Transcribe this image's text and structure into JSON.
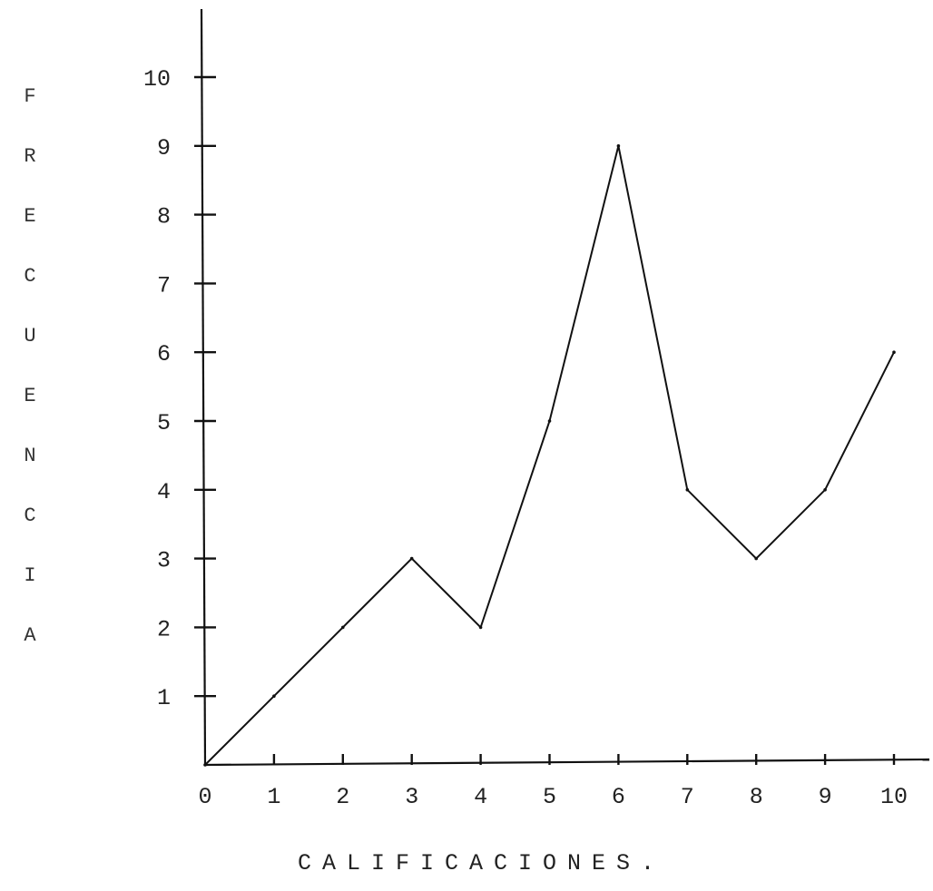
{
  "chart_data": {
    "type": "line",
    "xlabel": "CALIFICACIONES.",
    "ylabel": "FRECUENCIA",
    "x_ticks": [
      "0",
      "1",
      "2",
      "3",
      "4",
      "5",
      "6",
      "7",
      "8",
      "9",
      "10"
    ],
    "y_ticks": [
      "1",
      "2",
      "3",
      "4",
      "5",
      "6",
      "7",
      "8",
      "9",
      "10"
    ],
    "xlim": [
      0,
      10
    ],
    "ylim": [
      0,
      10
    ],
    "grid": false,
    "series": [
      {
        "x": [
          0,
          1,
          2,
          3,
          4,
          5,
          6,
          7,
          8,
          9,
          10
        ],
        "y": [
          0,
          1,
          2,
          3,
          2,
          5,
          9,
          4,
          3,
          4,
          6
        ]
      }
    ]
  }
}
